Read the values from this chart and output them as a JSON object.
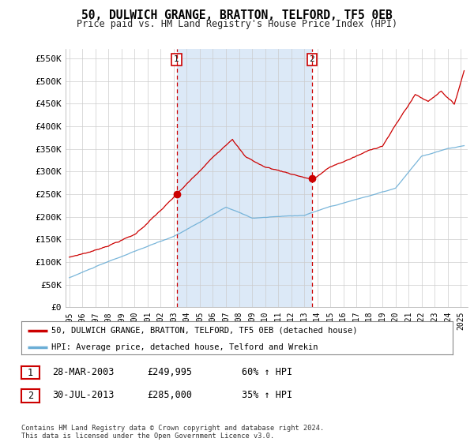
{
  "title": "50, DULWICH GRANGE, BRATTON, TELFORD, TF5 0EB",
  "subtitle": "Price paid vs. HM Land Registry's House Price Index (HPI)",
  "plot_bg_color": "#dce9f7",
  "white_bg": "#ffffff",
  "ylabel_ticks": [
    "£0",
    "£50K",
    "£100K",
    "£150K",
    "£200K",
    "£250K",
    "£300K",
    "£350K",
    "£400K",
    "£450K",
    "£500K",
    "£550K"
  ],
  "ytick_values": [
    0,
    50000,
    100000,
    150000,
    200000,
    250000,
    300000,
    350000,
    400000,
    450000,
    500000,
    550000
  ],
  "ylim": [
    0,
    572000
  ],
  "xlim_start": 1994.7,
  "xlim_end": 2025.5,
  "xtick_years": [
    1995,
    1996,
    1997,
    1998,
    1999,
    2000,
    2001,
    2002,
    2003,
    2004,
    2005,
    2006,
    2007,
    2008,
    2009,
    2010,
    2011,
    2012,
    2013,
    2014,
    2015,
    2016,
    2017,
    2018,
    2019,
    2020,
    2021,
    2022,
    2023,
    2024,
    2025
  ],
  "sale1_date": 2003.22,
  "sale1_price": 249995,
  "sale2_date": 2013.58,
  "sale2_price": 285000,
  "hpi_color": "#6baed6",
  "price_color": "#cc0000",
  "shade_color": "#dce9f7",
  "legend_box_label1": "50, DULWICH GRANGE, BRATTON, TELFORD, TF5 0EB (detached house)",
  "legend_box_label2": "HPI: Average price, detached house, Telford and Wrekin",
  "note1_label": "1",
  "note1_date": "28-MAR-2003",
  "note1_price": "£249,995",
  "note1_hpi": "60% ↑ HPI",
  "note2_label": "2",
  "note2_date": "30-JUL-2013",
  "note2_price": "£285,000",
  "note2_hpi": "35% ↑ HPI",
  "footer": "Contains HM Land Registry data © Crown copyright and database right 2024.\nThis data is licensed under the Open Government Licence v3.0."
}
